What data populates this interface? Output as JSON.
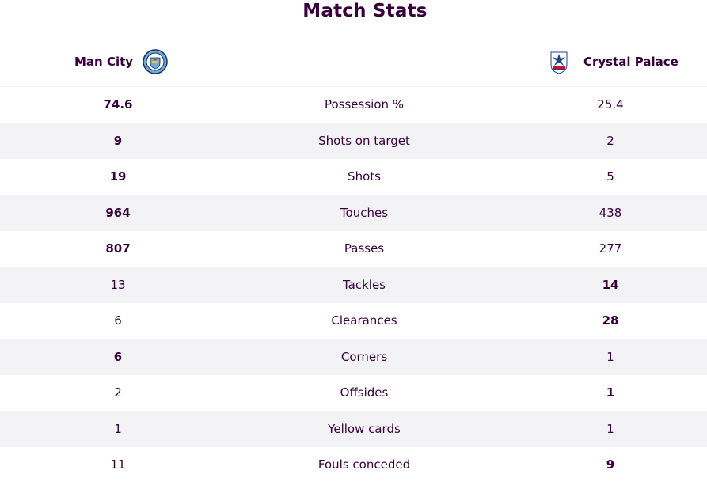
{
  "title": "Match Stats",
  "home_team": {
    "name": "Man City",
    "crest_icon": "man-city-crest-icon"
  },
  "away_team": {
    "name": "Crystal Palace",
    "crest_icon": "crystal-palace-crest-icon"
  },
  "colors": {
    "text": "#37003c",
    "row_alt": "#f3f3f5"
  },
  "stats": [
    {
      "label": "Possession %",
      "home": "74.6",
      "away": "25.4",
      "leader": "home"
    },
    {
      "label": "Shots on target",
      "home": "9",
      "away": "2",
      "leader": "home"
    },
    {
      "label": "Shots",
      "home": "19",
      "away": "5",
      "leader": "home"
    },
    {
      "label": "Touches",
      "home": "964",
      "away": "438",
      "leader": "home"
    },
    {
      "label": "Passes",
      "home": "807",
      "away": "277",
      "leader": "home"
    },
    {
      "label": "Tackles",
      "home": "13",
      "away": "14",
      "leader": "away"
    },
    {
      "label": "Clearances",
      "home": "6",
      "away": "28",
      "leader": "away"
    },
    {
      "label": "Corners",
      "home": "6",
      "away": "1",
      "leader": "home"
    },
    {
      "label": "Offsides",
      "home": "2",
      "away": "1",
      "leader": "away"
    },
    {
      "label": "Yellow cards",
      "home": "1",
      "away": "1",
      "leader": "none"
    },
    {
      "label": "Fouls conceded",
      "home": "11",
      "away": "9",
      "leader": "away"
    }
  ]
}
